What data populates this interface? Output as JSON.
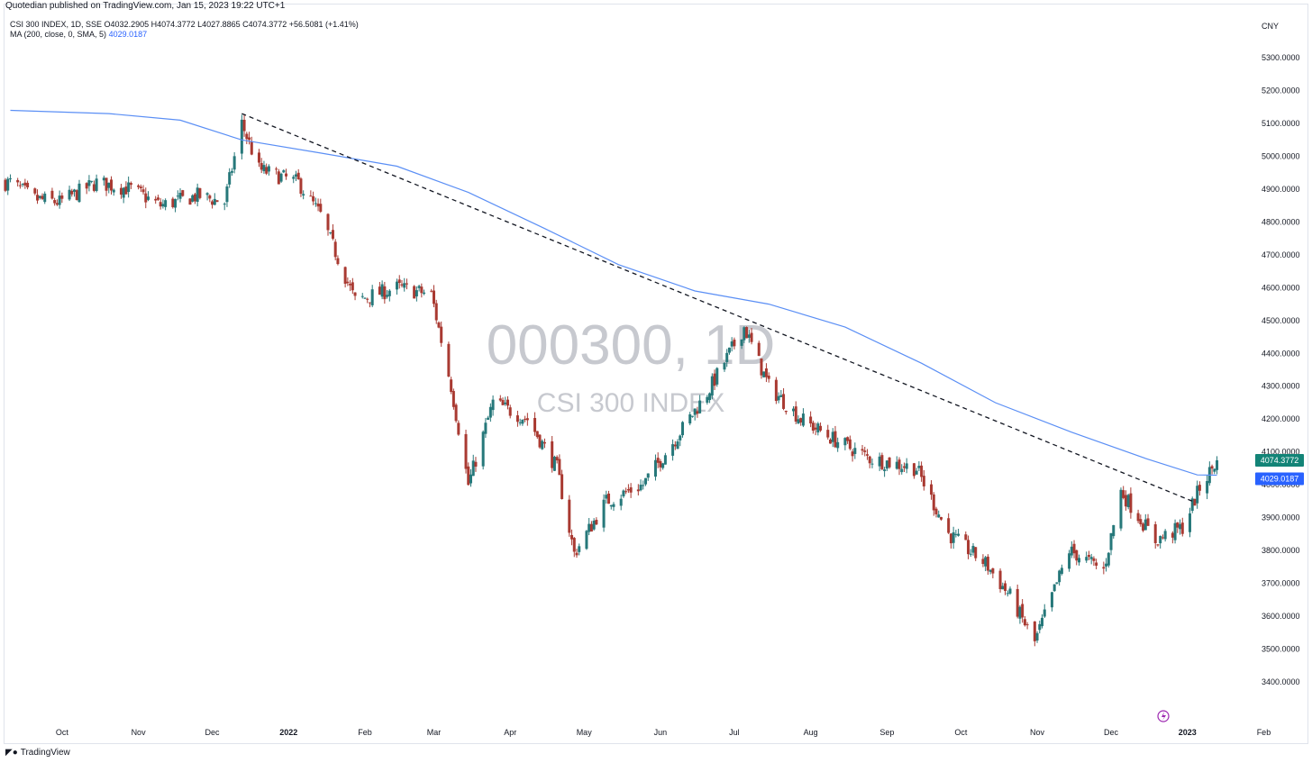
{
  "header": {
    "published": "Quotedian published on TradingView.com, Jan 15, 2023 19:22 UTC+1",
    "legend_line1": "CSI 300 INDEX, 1D, SSE  O4032.2905  H4074.3772  L4027.8865  C4074.3772  +56.5081 (+1.41%)",
    "legend_ma_label": "MA (200, close, 0, SMA, 5)",
    "legend_ma_value": "4029.0187",
    "currency": "CNY"
  },
  "watermark": {
    "symbol": "000300, 1D",
    "name": "CSI 300 INDEX"
  },
  "footer": {
    "brand": "TradingView"
  },
  "colors": {
    "up": "#26787a",
    "down": "#a93a32",
    "ma": "#5b8ff5",
    "last_price_badge": "#138477",
    "ma_badge": "#2962ff",
    "watermark": "#c7c9cf"
  },
  "chart_data": {
    "type": "candlestick",
    "price_scale": {
      "ylim": [
        3320,
        5380
      ],
      "ticks": [
        "5300.0000",
        "5200.0000",
        "5100.0000",
        "5000.0000",
        "4900.0000",
        "4800.0000",
        "4700.0000",
        "4600.0000",
        "4500.0000",
        "4400.0000",
        "4300.0000",
        "4200.0000",
        "4100.0000",
        "4000.0000",
        "3900.0000",
        "3800.0000",
        "3700.0000",
        "3600.0000",
        "3500.0000",
        "3400.0000"
      ],
      "last_price_label": "4074.3772",
      "ma_label": "4029.0187"
    },
    "time_axis": {
      "labels": [
        {
          "text": "Oct",
          "bold": false
        },
        {
          "text": "Nov",
          "bold": false
        },
        {
          "text": "Dec",
          "bold": false
        },
        {
          "text": "2022",
          "bold": true
        },
        {
          "text": "Feb",
          "bold": false
        },
        {
          "text": "Mar",
          "bold": false
        },
        {
          "text": "Apr",
          "bold": false
        },
        {
          "text": "May",
          "bold": false
        },
        {
          "text": "Jun",
          "bold": false
        },
        {
          "text": "Jul",
          "bold": false
        },
        {
          "text": "Aug",
          "bold": false
        },
        {
          "text": "Sep",
          "bold": false
        },
        {
          "text": "Oct",
          "bold": false
        },
        {
          "text": "Nov",
          "bold": false
        },
        {
          "text": "Dec",
          "bold": false
        },
        {
          "text": "2023",
          "bold": true
        },
        {
          "text": "Feb",
          "bold": false
        }
      ]
    },
    "close_anchors": [
      {
        "date": "2021-09-10",
        "close": 4920
      },
      {
        "date": "2021-09-20",
        "close": 4870
      },
      {
        "date": "2021-09-30",
        "close": 4860
      },
      {
        "date": "2021-10-15",
        "close": 4920
      },
      {
        "date": "2021-10-29",
        "close": 4900
      },
      {
        "date": "2021-11-10",
        "close": 4850
      },
      {
        "date": "2021-11-25",
        "close": 4880
      },
      {
        "date": "2021-12-06",
        "close": 4860
      },
      {
        "date": "2021-12-13",
        "close": 5100
      },
      {
        "date": "2021-12-20",
        "close": 4960
      },
      {
        "date": "2022-01-05",
        "close": 4920
      },
      {
        "date": "2022-01-14",
        "close": 4820
      },
      {
        "date": "2022-01-28",
        "close": 4560
      },
      {
        "date": "2022-02-14",
        "close": 4600
      },
      {
        "date": "2022-02-28",
        "close": 4580
      },
      {
        "date": "2022-03-08",
        "close": 4300
      },
      {
        "date": "2022-03-15",
        "close": 4000
      },
      {
        "date": "2022-03-25",
        "close": 4250
      },
      {
        "date": "2022-04-08",
        "close": 4200
      },
      {
        "date": "2022-04-20",
        "close": 4050
      },
      {
        "date": "2022-04-27",
        "close": 3790
      },
      {
        "date": "2022-05-10",
        "close": 3950
      },
      {
        "date": "2022-05-25",
        "close": 4000
      },
      {
        "date": "2022-06-08",
        "close": 4150
      },
      {
        "date": "2022-06-20",
        "close": 4280
      },
      {
        "date": "2022-07-05",
        "close": 4480
      },
      {
        "date": "2022-07-15",
        "close": 4300
      },
      {
        "date": "2022-07-28",
        "close": 4200
      },
      {
        "date": "2022-08-10",
        "close": 4140
      },
      {
        "date": "2022-08-25",
        "close": 4080
      },
      {
        "date": "2022-09-13",
        "close": 4050
      },
      {
        "date": "2022-09-26",
        "close": 3850
      },
      {
        "date": "2022-10-11",
        "close": 3760
      },
      {
        "date": "2022-10-21",
        "close": 3660
      },
      {
        "date": "2022-10-31",
        "close": 3520
      },
      {
        "date": "2022-11-14",
        "close": 3800
      },
      {
        "date": "2022-11-28",
        "close": 3740
      },
      {
        "date": "2022-12-05",
        "close": 3980
      },
      {
        "date": "2022-12-19",
        "close": 3830
      },
      {
        "date": "2022-12-30",
        "close": 3870
      },
      {
        "date": "2023-01-06",
        "close": 3990
      },
      {
        "date": "2023-01-13",
        "close": 4074.3772
      }
    ],
    "ma_200": [
      {
        "date": "2021-09-10",
        "value": 5140
      },
      {
        "date": "2021-10-20",
        "value": 5130
      },
      {
        "date": "2021-11-18",
        "value": 5110
      },
      {
        "date": "2021-12-13",
        "value": 5050
      },
      {
        "date": "2022-01-14",
        "value": 5010
      },
      {
        "date": "2022-02-14",
        "value": 4970
      },
      {
        "date": "2022-03-15",
        "value": 4890
      },
      {
        "date": "2022-04-15",
        "value": 4780
      },
      {
        "date": "2022-05-15",
        "value": 4670
      },
      {
        "date": "2022-06-15",
        "value": 4590
      },
      {
        "date": "2022-07-15",
        "value": 4550
      },
      {
        "date": "2022-08-15",
        "value": 4480
      },
      {
        "date": "2022-09-15",
        "value": 4370
      },
      {
        "date": "2022-10-15",
        "value": 4250
      },
      {
        "date": "2022-11-15",
        "value": 4160
      },
      {
        "date": "2022-12-15",
        "value": 4080
      },
      {
        "date": "2023-01-05",
        "value": 4030
      },
      {
        "date": "2023-01-13",
        "value": 4029.0187
      }
    ],
    "trendline": {
      "style": "dashed",
      "from": {
        "date": "2021-12-13",
        "value": 5130
      },
      "to": {
        "date": "2023-01-03",
        "value": 3950
      }
    }
  }
}
